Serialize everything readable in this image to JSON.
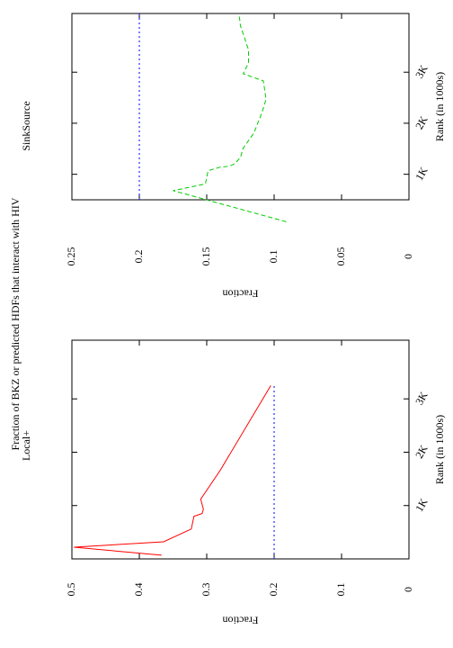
{
  "title": "Fraction of BKZ or predicted HDFs that interact with HIV",
  "chart_data": [
    {
      "type": "line",
      "title": "Local+",
      "xlabel": "Rank (in 1000s)",
      "ylabel": "Fraction",
      "xlim": [
        0,
        4100
      ],
      "xticks": [
        {
          "value": 1000,
          "label": "1K"
        },
        {
          "value": 2000,
          "label": "2K"
        },
        {
          "value": 3000,
          "label": "3K"
        }
      ],
      "ylim": [
        0,
        0.5
      ],
      "yticks": [
        0,
        0.1,
        0.2,
        0.3,
        0.4,
        0.5
      ],
      "series": [
        {
          "color": "#ff0000",
          "dash": "solid",
          "x": [
            70,
            220,
            320,
            560,
            800,
            850,
            930,
            1120,
            1660,
            3250
          ],
          "values": [
            0.367,
            0.497,
            0.364,
            0.323,
            0.319,
            0.307,
            0.305,
            0.309,
            0.28,
            0.205
          ]
        },
        {
          "color": "#0000ff",
          "dash": "dotted",
          "x": [
            0,
            3250
          ],
          "values": [
            0.2,
            0.2
          ]
        }
      ]
    },
    {
      "type": "line",
      "title": "SinkSource",
      "xlabel": "Rank (in 1000s)",
      "ylabel": "Fraction",
      "xlim": [
        500,
        4150
      ],
      "xticks": [
        {
          "value": 1000,
          "label": "1K"
        },
        {
          "value": 2000,
          "label": "2K"
        },
        {
          "value": 3000,
          "label": "3K"
        }
      ],
      "ylim": [
        0,
        0.25
      ],
      "yticks": [
        0,
        0.05,
        0.1,
        0.15,
        0.2,
        0.25
      ],
      "series": [
        {
          "color": "#00cc00",
          "dash": "dashed",
          "x": [
            70,
            680,
            810,
            1070,
            1140,
            1160,
            1210,
            1330,
            1510,
            1810,
            2210,
            2470,
            2830,
            2970,
            3180,
            3440,
            3910,
            4140
          ],
          "values": [
            0.091,
            0.175,
            0.151,
            0.149,
            0.14,
            0.133,
            0.129,
            0.125,
            0.123,
            0.115,
            0.109,
            0.106,
            0.108,
            0.123,
            0.119,
            0.119,
            0.125,
            0.126
          ]
        },
        {
          "color": "#0000ff",
          "dash": "dotted",
          "x": [
            500,
            4150
          ],
          "values": [
            0.2,
            0.2
          ]
        }
      ]
    }
  ]
}
